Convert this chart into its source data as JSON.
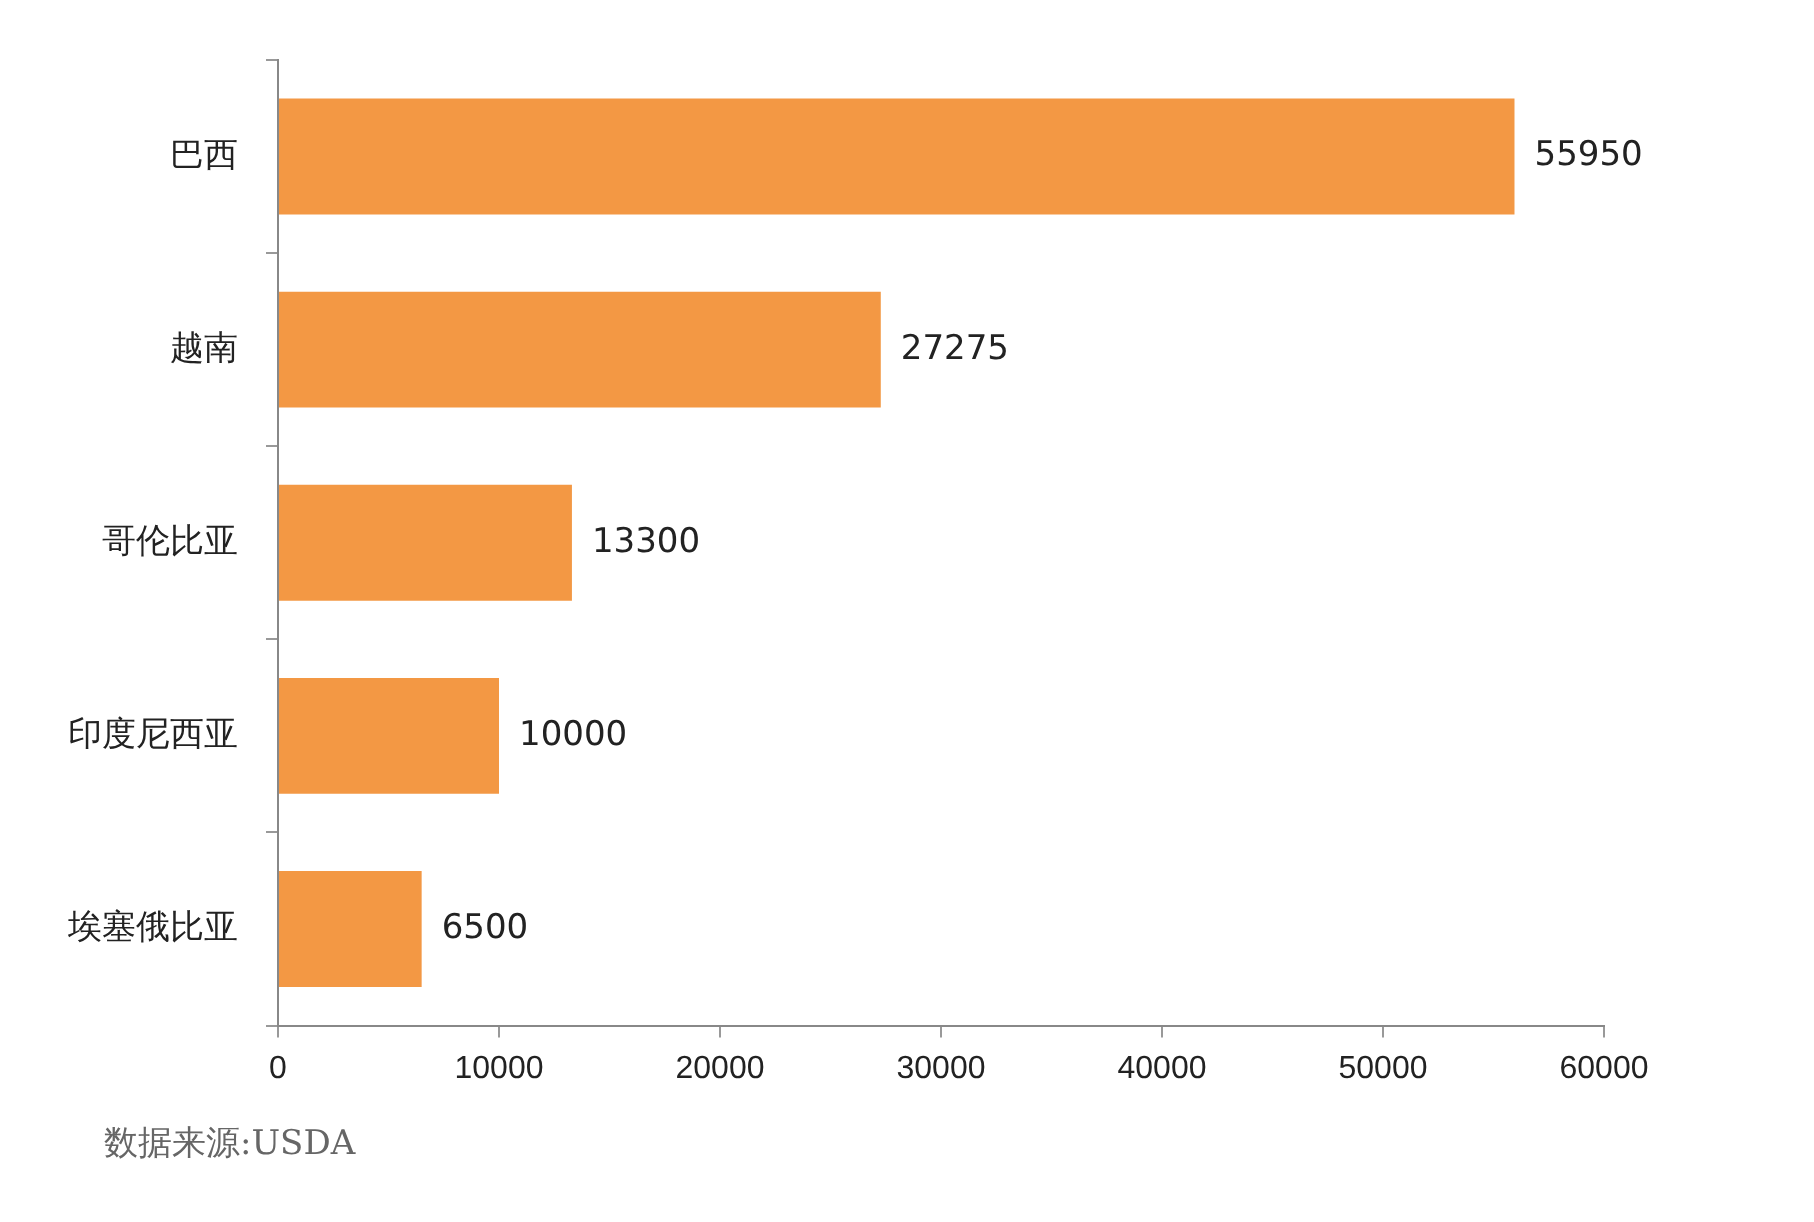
{
  "chart_data": {
    "type": "bar",
    "orientation": "horizontal",
    "categories": [
      "巴西",
      "越南",
      "哥伦比亚",
      "印度尼西亚",
      "埃塞俄比亚"
    ],
    "values": [
      55950,
      27275,
      13300,
      10000,
      6500
    ],
    "color": "#f39844",
    "xlim": [
      0,
      60000
    ],
    "xticks": [
      0,
      10000,
      20000,
      30000,
      40000,
      50000,
      60000
    ],
    "grid": false,
    "data_labels": true,
    "annotations": [
      "数据来源:USDA"
    ]
  }
}
